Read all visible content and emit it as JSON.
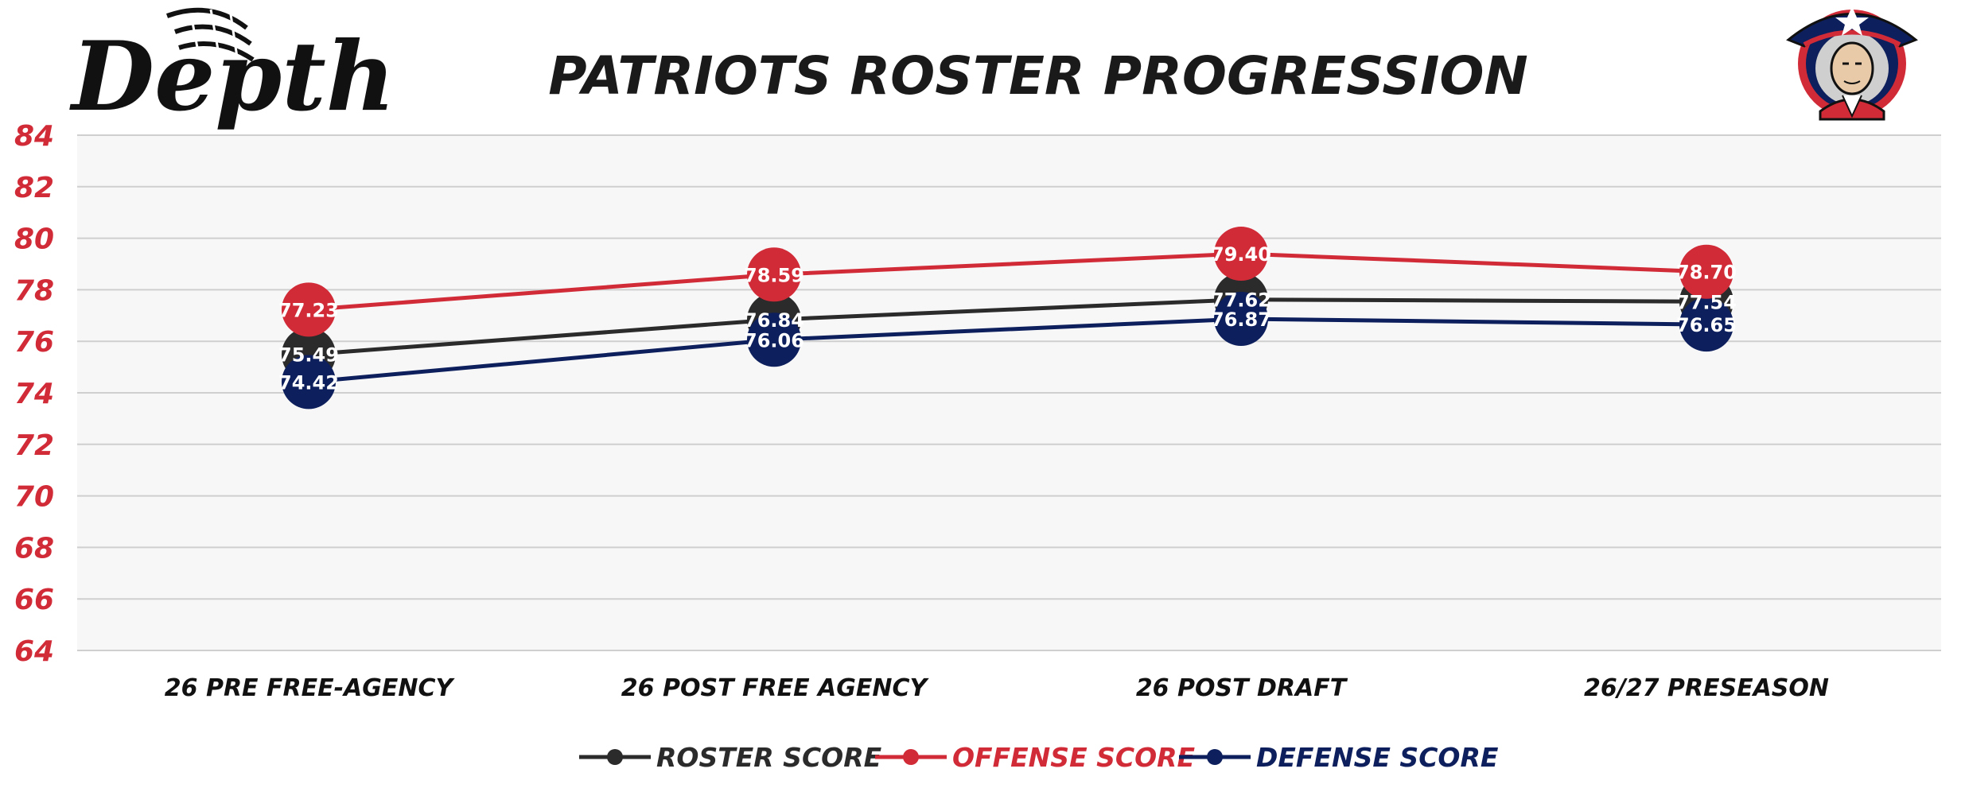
{
  "brand": {
    "logo_text": "Depth"
  },
  "colors": {
    "roster": "#2b2b2b",
    "offense": "#d22b38",
    "defense": "#0d1f5c",
    "axis_label": "#d22b38",
    "plot_background": "#f7f7f7",
    "gridline": "#cfcfcf"
  },
  "icons": {
    "brand_logo": "depth-logo-icon",
    "team_logo": "patriot-mascot-icon"
  },
  "chart_data": {
    "type": "line",
    "title": "PATRIOTS ROSTER PROGRESSION",
    "xlabel": "",
    "ylabel": "",
    "categories": [
      "26 PRE FREE-AGENCY",
      "26 POST FREE AGENCY",
      "26 POST DRAFT",
      "26/27 PRESEASON"
    ],
    "ylim": [
      64,
      84
    ],
    "yticks": [
      "84",
      "82",
      "80",
      "78",
      "76",
      "74",
      "72",
      "70",
      "68",
      "66",
      "64"
    ],
    "grid": true,
    "legend_position": "bottom-center",
    "series": [
      {
        "name": "ROSTER SCORE",
        "color": "#2b2b2b",
        "values": [
          75.49,
          76.84,
          77.62,
          77.54
        ],
        "labels": [
          "75.49",
          "76.84",
          "77.62",
          "77.54"
        ]
      },
      {
        "name": "OFFENSE SCORE",
        "color": "#d22b38",
        "values": [
          77.23,
          78.59,
          79.4,
          78.7
        ],
        "labels": [
          "77.23",
          "78.59",
          "79.40",
          "78.70"
        ]
      },
      {
        "name": "DEFENSE SCORE",
        "color": "#0d1f5c",
        "values": [
          74.42,
          76.06,
          76.87,
          76.65
        ],
        "labels": [
          "74.42",
          "76.06",
          "76.87",
          "76.65"
        ]
      }
    ]
  }
}
